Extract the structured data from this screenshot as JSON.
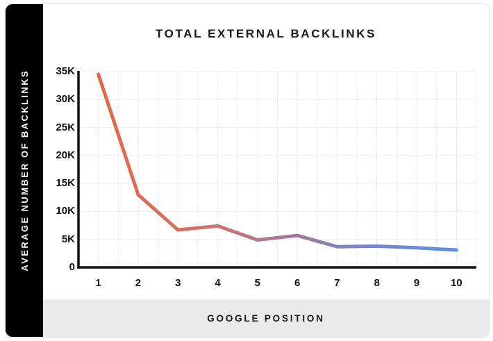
{
  "card": {
    "title": "TOTAL EXTERNAL BACKLINKS",
    "left_panel_label": "AVERAGE NUMBER OF BACKLINKS",
    "bottom_panel_label": "GOOGLE POSITION"
  },
  "colors": {
    "sidebar_bg": "#000000",
    "footer_bg": "#eaeaea",
    "grid": "#ededed",
    "axis": "#101010",
    "tick_text": "#111111",
    "title_text": "#181818",
    "line_gradient": [
      "#E3694A",
      "#CE7370",
      "#9F7B9B",
      "#7887C8",
      "#5E8EE6"
    ],
    "line_gradient_stops": [
      0,
      0.32,
      0.55,
      0.74,
      1
    ]
  },
  "chart_data": {
    "type": "line",
    "title": "TOTAL EXTERNAL BACKLINKS",
    "xlabel": "GOOGLE POSITION",
    "ylabel": "AVERAGE NUMBER OF BACKLINKS",
    "x": [
      1,
      2,
      3,
      4,
      5,
      6,
      7,
      8,
      9,
      10
    ],
    "x_tick_labels": [
      "1",
      "2",
      "3",
      "4",
      "5",
      "6",
      "7",
      "8",
      "9",
      "10"
    ],
    "values": [
      34500,
      13000,
      6700,
      7400,
      4900,
      5700,
      3700,
      3800,
      3500,
      3100
    ],
    "y_tick_values": [
      0,
      5000,
      10000,
      15000,
      20000,
      25000,
      30000,
      35000
    ],
    "y_tick_labels": [
      "0",
      "5K",
      "10K",
      "15K",
      "20K",
      "25K",
      "30K",
      "35K"
    ],
    "ylim": [
      0,
      35000
    ],
    "xlim": [
      0.5,
      10.5
    ],
    "grid": true,
    "minor_x_grid_step": 0.5,
    "legend": "none",
    "line_width": 5
  }
}
